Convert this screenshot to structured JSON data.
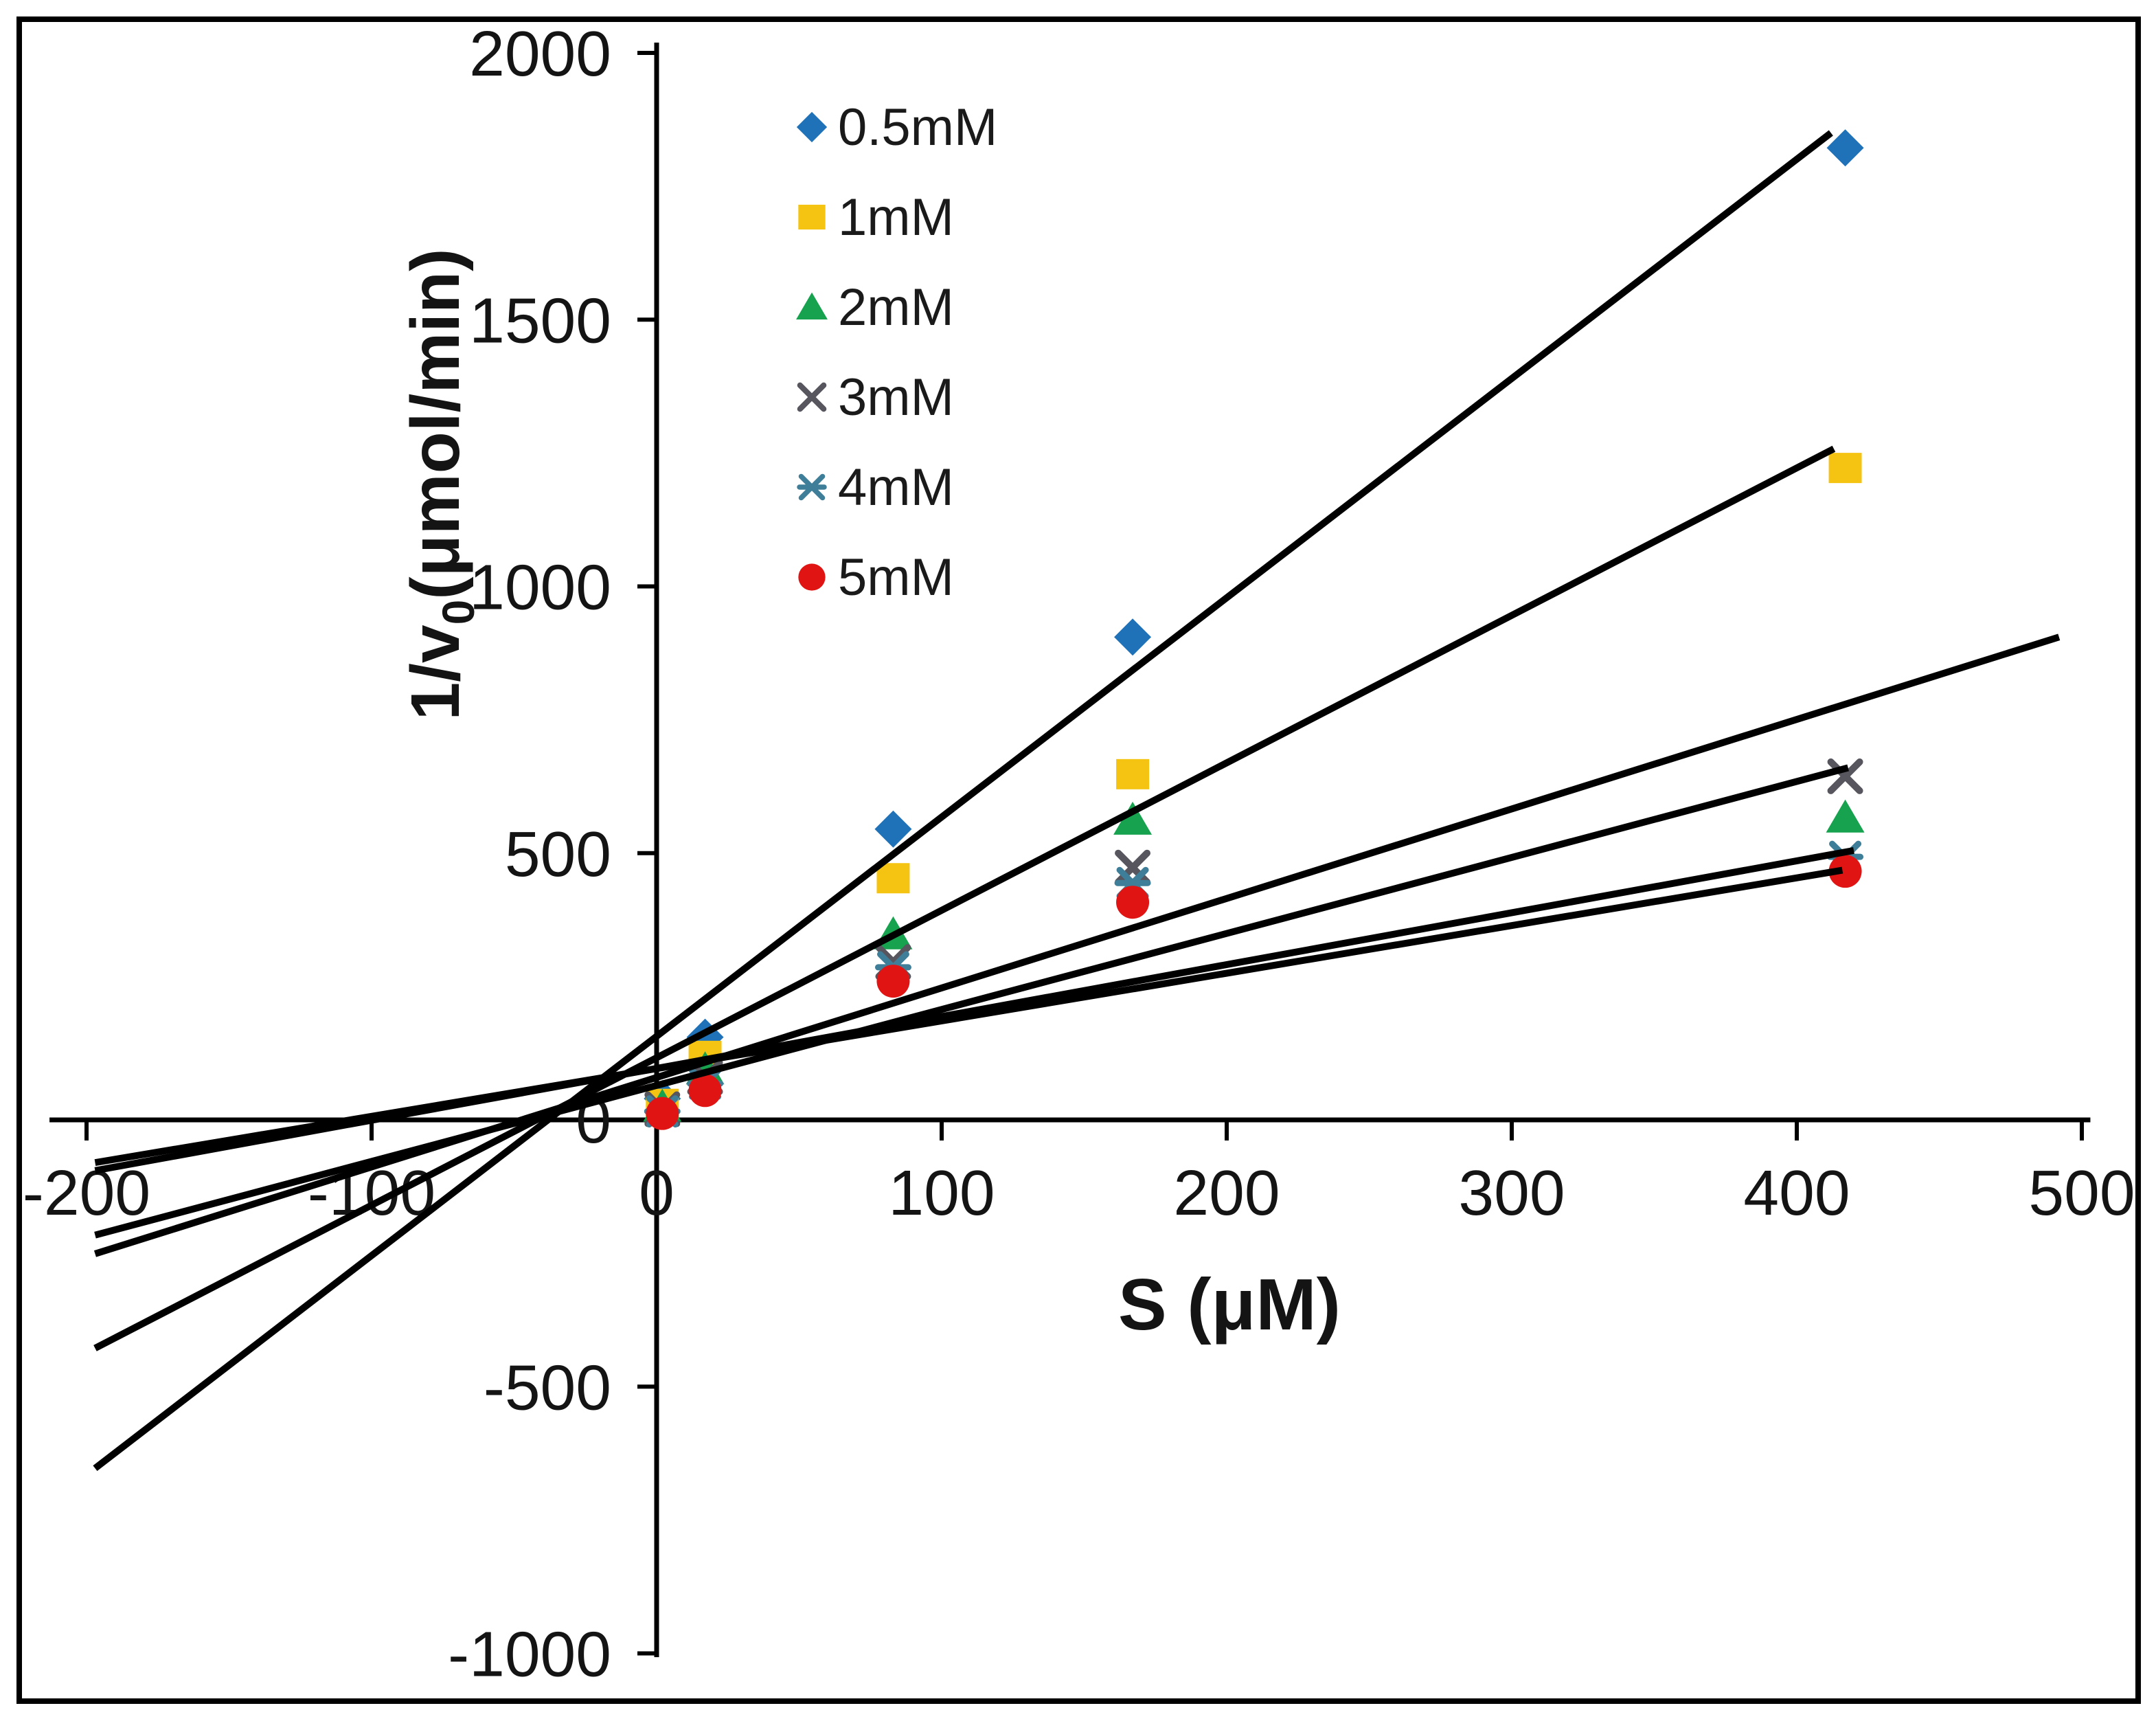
{
  "figure": {
    "background": "#ffffff",
    "border_color": "#000000",
    "text_color": "#141414",
    "line_color": "#000000"
  },
  "chart_data": {
    "type": "scatter",
    "title": "",
    "xlabel": "S (μM)",
    "ylabel": "1/v₀(μmol/min)",
    "xlim": [
      -220,
      510
    ],
    "ylim": [
      -1060,
      2050
    ],
    "x_ticks": [
      -200,
      -100,
      0,
      100,
      200,
      300,
      400,
      500
    ],
    "y_ticks": [
      -1000,
      -500,
      0,
      500,
      1000,
      1500,
      2000
    ],
    "grid": false,
    "legend_position": "top-left-inside",
    "x_values": [
      2,
      17,
      83,
      167,
      417
    ],
    "series": [
      {
        "name": "0.5mM",
        "marker": "diamond",
        "color": "#1F72B8",
        "values": [
          40,
          155,
          545,
          905,
          1822
        ]
      },
      {
        "name": "1mM",
        "marker": "square",
        "color": "#F5C413",
        "values": [
          30,
          120,
          453,
          648,
          1222
        ]
      },
      {
        "name": "2mM",
        "marker": "triangle",
        "color": "#17A24F",
        "values": [
          25,
          95,
          348,
          563,
          567
        ]
      },
      {
        "name": "3mM",
        "marker": "x",
        "color": "#57555E",
        "values": [
          20,
          80,
          296,
          473,
          644
        ]
      },
      {
        "name": "4mM",
        "marker": "asterisk",
        "color": "#3E7E98",
        "values": [
          16,
          68,
          286,
          444,
          493
        ]
      },
      {
        "name": "5mM",
        "marker": "circle",
        "color": "#E11414",
        "values": [
          12,
          55,
          260,
          408,
          466
        ]
      }
    ],
    "trendlines": [
      {
        "x1": -197,
        "y1": -653,
        "x2": 412,
        "y2": 1850
      },
      {
        "x1": -197,
        "y1": -428,
        "x2": 413,
        "y2": 1258
      },
      {
        "x1": -197,
        "y1": -251,
        "x2": 492,
        "y2": 905
      },
      {
        "x1": -197,
        "y1": -216,
        "x2": 418,
        "y2": 660
      },
      {
        "x1": -197,
        "y1": -95,
        "x2": 420,
        "y2": 505
      },
      {
        "x1": -197,
        "y1": -80,
        "x2": 416,
        "y2": 468
      }
    ]
  }
}
